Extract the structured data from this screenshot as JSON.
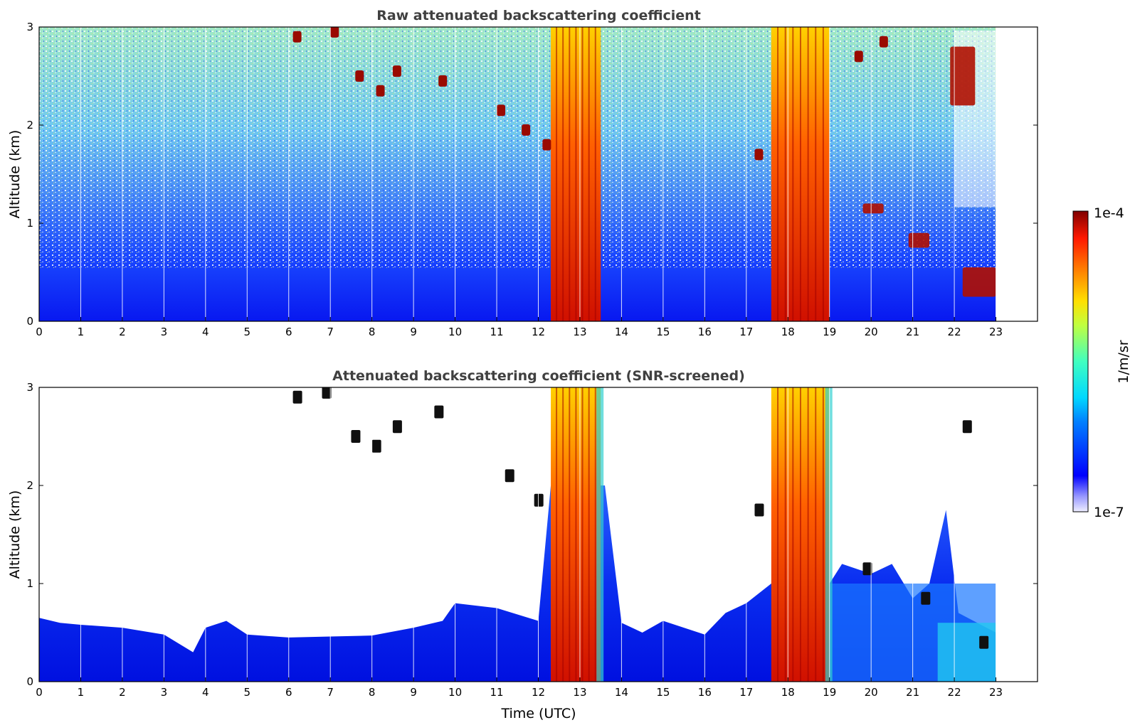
{
  "chart_data": [
    {
      "type": "heatmap",
      "title": "Raw attenuated backscattering coefficient",
      "xlabel": "",
      "ylabel": "Altitude (km)",
      "xlim": [
        0,
        24
      ],
      "ylim": [
        0,
        3
      ],
      "x_ticks": [
        "0",
        "1",
        "2",
        "3",
        "4",
        "5",
        "6",
        "7",
        "8",
        "9",
        "10",
        "11",
        "12",
        "13",
        "14",
        "15",
        "16",
        "17",
        "18",
        "19",
        "20",
        "21",
        "22",
        "23"
      ],
      "y_ticks": [
        "0",
        "1",
        "2",
        "3"
      ],
      "colormap": "jet",
      "color_scale": "log",
      "data_end_hour": 23,
      "features": [
        {
          "kind": "thick cloud",
          "x": [
            12.3,
            13.5
          ],
          "y": [
            0,
            3
          ]
        },
        {
          "kind": "thick cloud",
          "x": [
            17.6,
            19.0
          ],
          "y": [
            0,
            3
          ]
        },
        {
          "kind": "cloud",
          "x": [
            19.8,
            20.3
          ],
          "y": [
            1.1,
            1.2
          ]
        },
        {
          "kind": "cloud",
          "x": [
            20.9,
            21.4
          ],
          "y": [
            0.75,
            0.9
          ]
        },
        {
          "kind": "cloud",
          "x": [
            22.2,
            23.0
          ],
          "y": [
            0.25,
            0.55
          ]
        },
        {
          "kind": "cloud",
          "x": [
            21.9,
            22.5
          ],
          "y": [
            2.2,
            2.8
          ]
        }
      ]
    },
    {
      "type": "heatmap",
      "title": "Attenuated backscattering coefficient (SNR-screened)",
      "xlabel": "Time (UTC)",
      "ylabel": "Altitude (km)",
      "xlim": [
        0,
        24
      ],
      "ylim": [
        0,
        3
      ],
      "x_ticks": [
        "0",
        "1",
        "2",
        "3",
        "4",
        "5",
        "6",
        "7",
        "8",
        "9",
        "10",
        "11",
        "12",
        "13",
        "14",
        "15",
        "16",
        "17",
        "18",
        "19",
        "20",
        "21",
        "22",
        "23"
      ],
      "y_ticks": [
        "0",
        "1",
        "2",
        "3"
      ],
      "colormap": "jet",
      "color_scale": "log",
      "data_end_hour": 23,
      "boundary_layer_top_km": [
        [
          0,
          0.65
        ],
        [
          0.5,
          0.6
        ],
        [
          1,
          0.58
        ],
        [
          2,
          0.55
        ],
        [
          3,
          0.48
        ],
        [
          3.7,
          0.3
        ],
        [
          4,
          0.55
        ],
        [
          4.5,
          0.62
        ],
        [
          5,
          0.48
        ],
        [
          6,
          0.45
        ],
        [
          7,
          0.46
        ],
        [
          8,
          0.47
        ],
        [
          9,
          0.55
        ],
        [
          9.7,
          0.62
        ],
        [
          10,
          0.8
        ],
        [
          11,
          0.75
        ],
        [
          12,
          0.62
        ],
        [
          12.3,
          2.0
        ],
        [
          13.6,
          2.0
        ],
        [
          14,
          0.6
        ],
        [
          14.5,
          0.5
        ],
        [
          15,
          0.62
        ],
        [
          16,
          0.48
        ],
        [
          16.5,
          0.7
        ],
        [
          17,
          0.8
        ],
        [
          17.6,
          1.0
        ],
        [
          19,
          1.0
        ],
        [
          19.3,
          1.2
        ],
        [
          20,
          1.1
        ],
        [
          20.5,
          1.2
        ],
        [
          21,
          0.85
        ],
        [
          21.4,
          1.0
        ],
        [
          21.8,
          1.75
        ],
        [
          22.1,
          0.7
        ],
        [
          23,
          0.5
        ]
      ]
    }
  ],
  "colorbar": {
    "label": "1/m/sr",
    "max_label": "1e-4",
    "min_label": "1e-7",
    "min_value": 1e-07,
    "max_value": 0.0001
  }
}
